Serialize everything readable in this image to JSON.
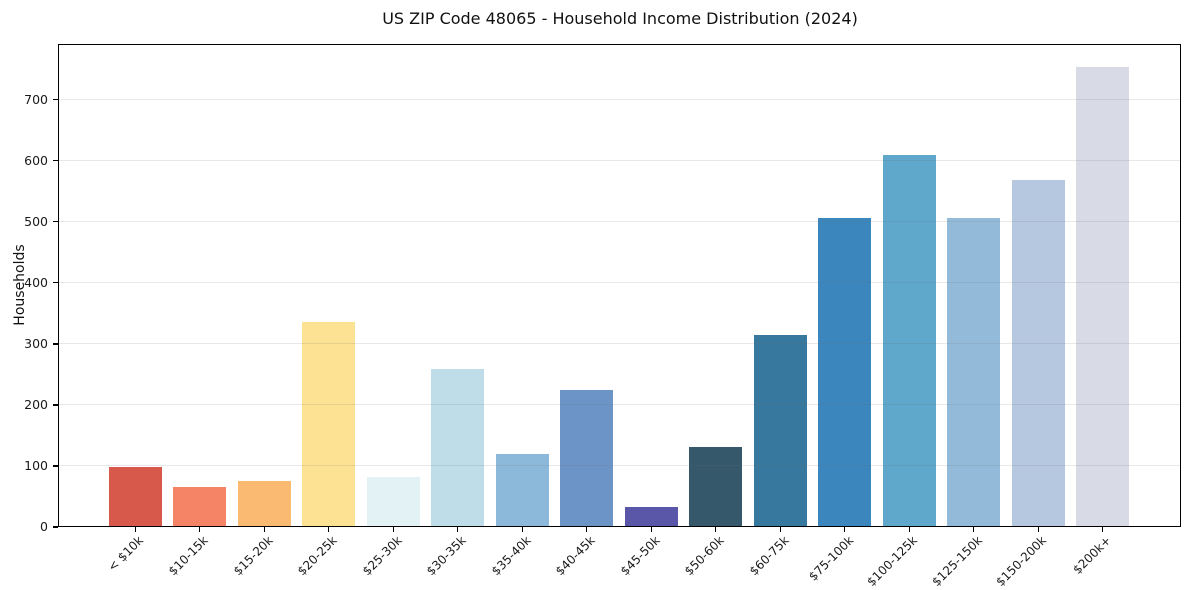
{
  "chart_data": {
    "type": "bar",
    "title": "US ZIP Code 48065 - Household Income Distribution (2024)",
    "xlabel": "",
    "ylabel": "Households",
    "categories": [
      "< $10k",
      "$10-15k",
      "$15-20k",
      "$20-25k",
      "$25-30k",
      "$30-35k",
      "$35-40k",
      "$40-45k",
      "$45-50k",
      "$50-60k",
      "$60-75k",
      "$75-100k",
      "$100-125k",
      "$125-150k",
      "$150-200k",
      "$200k+"
    ],
    "values": [
      99,
      66,
      75,
      336,
      82,
      259,
      120,
      225,
      33,
      131,
      314,
      506,
      610,
      506,
      568,
      753
    ],
    "bar_colors": [
      "#d6594b",
      "#f58467",
      "#fbba72",
      "#fde294",
      "#e3f2f5",
      "#bedde9",
      "#8cb9da",
      "#6d94c7",
      "#5a56a8",
      "#35586b",
      "#36789e",
      "#3a86bd",
      "#5fa7cb",
      "#93bad8",
      "#b6c8df",
      "#d8dae6"
    ],
    "yticks": [
      0,
      100,
      200,
      300,
      400,
      500,
      600,
      700
    ],
    "ylim": [
      0,
      791
    ],
    "grid": "horizontal",
    "legend": "none",
    "axis_color": "#000000",
    "background_color": "#ffffff"
  }
}
